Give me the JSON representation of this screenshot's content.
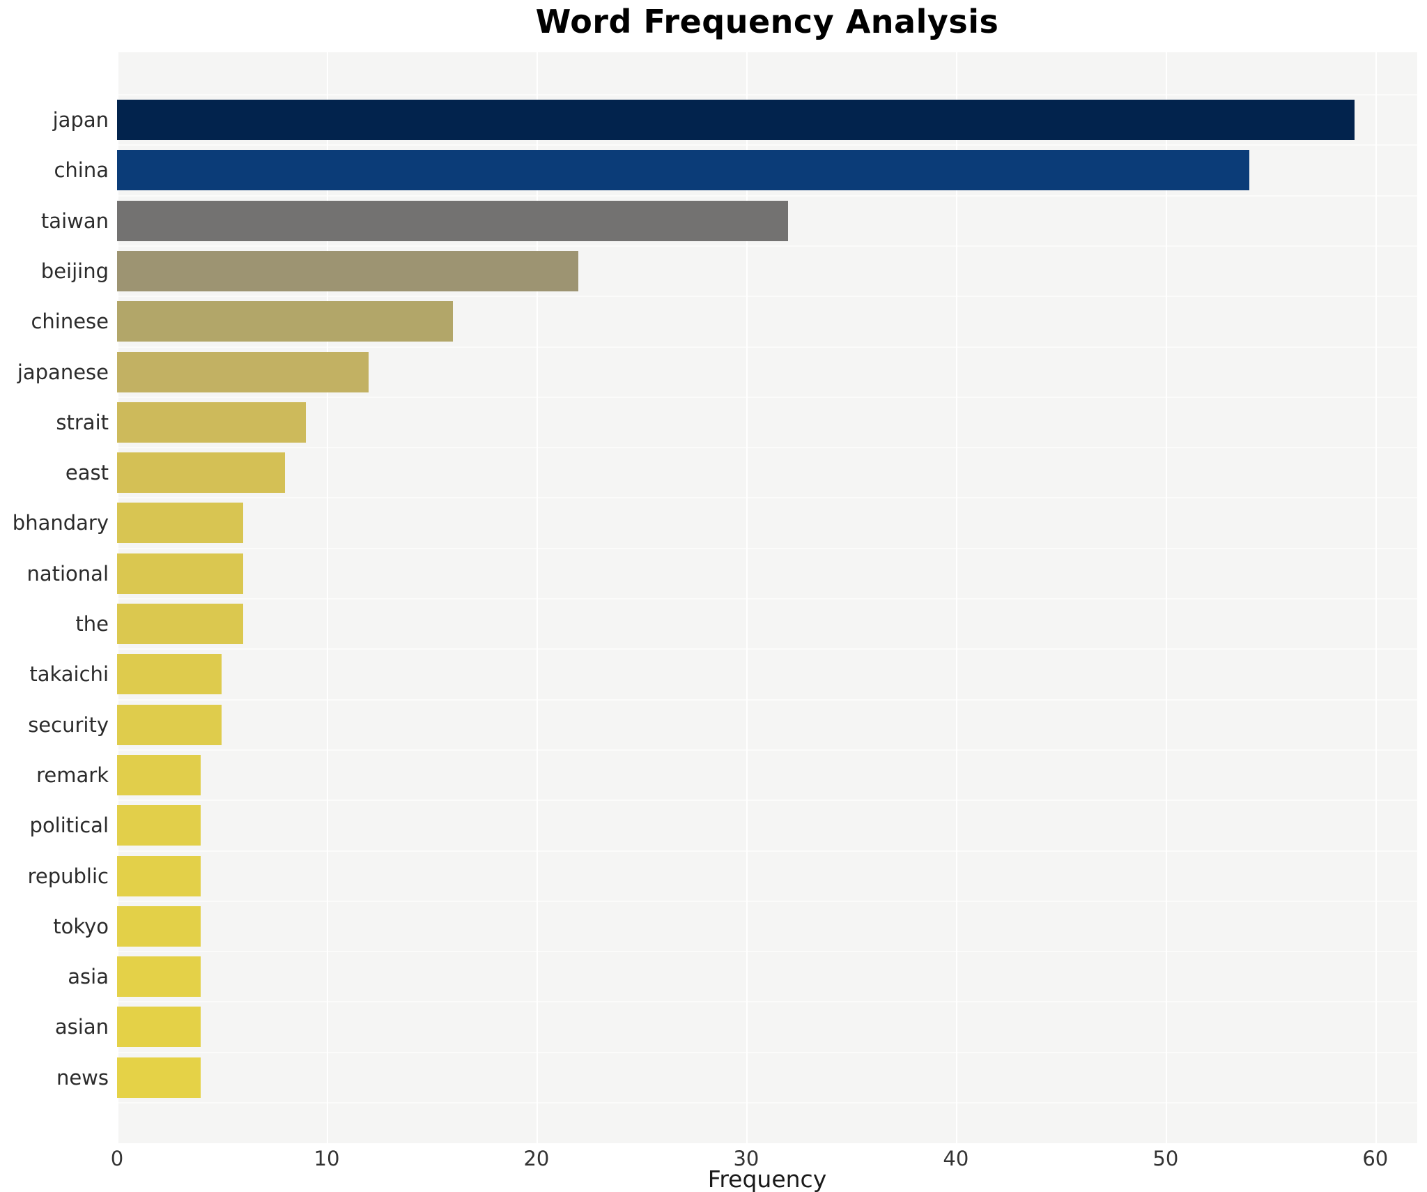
{
  "title": "Word Frequency Analysis",
  "chart_data": {
    "type": "bar",
    "orientation": "horizontal",
    "title": "Word Frequency Analysis",
    "xlabel": "Frequency",
    "ylabel": "",
    "xlim": [
      0,
      62
    ],
    "x_ticks": [
      0,
      10,
      20,
      30,
      40,
      50,
      60
    ],
    "grid": true,
    "legend": "none",
    "plot_background": "#f5f5f4",
    "grid_color": "#ffffff",
    "text_color": "#2b2b2b",
    "categories": [
      "japan",
      "china",
      "taiwan",
      "beijing",
      "chinese",
      "japanese",
      "strait",
      "east",
      "bhandary",
      "national",
      "the",
      "takaichi",
      "security",
      "remark",
      "political",
      "republic",
      "tokyo",
      "asia",
      "asian",
      "news"
    ],
    "values": [
      59,
      54,
      32,
      22,
      16,
      12,
      9,
      8,
      6,
      6,
      6,
      5,
      5,
      4,
      4,
      4,
      4,
      4,
      4,
      4
    ],
    "bar_colors": [
      "#02234d",
      "#0b3c78",
      "#737271",
      "#9d9472",
      "#b2a669",
      "#c2b163",
      "#cdba5b",
      "#d4c055",
      "#d8c552",
      "#dac750",
      "#dbc84f",
      "#decb4d",
      "#dfcc4c",
      "#e1ce4b",
      "#e2cf4a",
      "#e3d049",
      "#e3d048",
      "#e4d148",
      "#e4d147",
      "#e5d247"
    ]
  }
}
